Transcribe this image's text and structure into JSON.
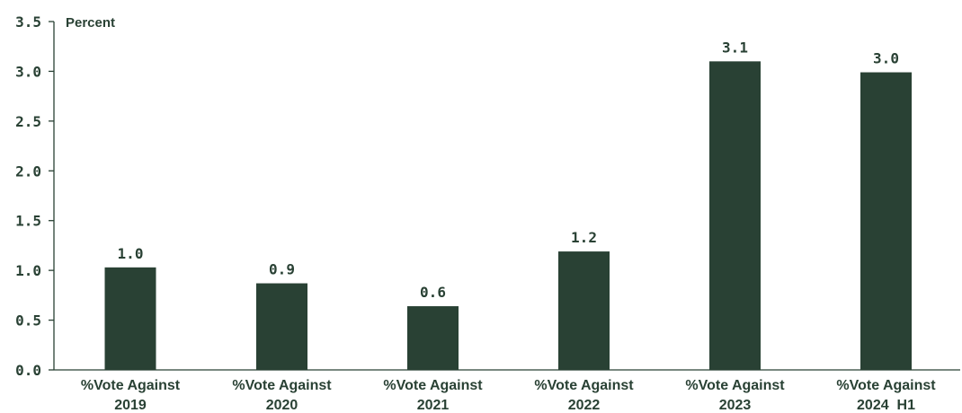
{
  "chart_data": {
    "type": "bar",
    "ylabel": "Percent",
    "ylim": [
      0,
      3.5
    ],
    "yticks": [
      "0.0",
      "0.5",
      "1.0",
      "1.5",
      "2.0",
      "2.5",
      "3.0",
      "3.5"
    ],
    "categories": [
      [
        "%Vote Against",
        "2019"
      ],
      [
        "%Vote Against",
        "2020"
      ],
      [
        "%Vote Against",
        "2021"
      ],
      [
        "%Vote Against",
        "2022"
      ],
      [
        "%Vote Against",
        "2023"
      ],
      [
        "%Vote Against",
        "2024  H1"
      ]
    ],
    "values": [
      1.03,
      0.87,
      0.64,
      1.19,
      3.1,
      2.99
    ],
    "value_labels": [
      "1.0",
      "0.9",
      "0.6",
      "1.2",
      "3.1",
      "3.0"
    ],
    "colors": {
      "bar": "#294134",
      "text": "#294134",
      "axis": "#294134"
    },
    "grid": false
  }
}
